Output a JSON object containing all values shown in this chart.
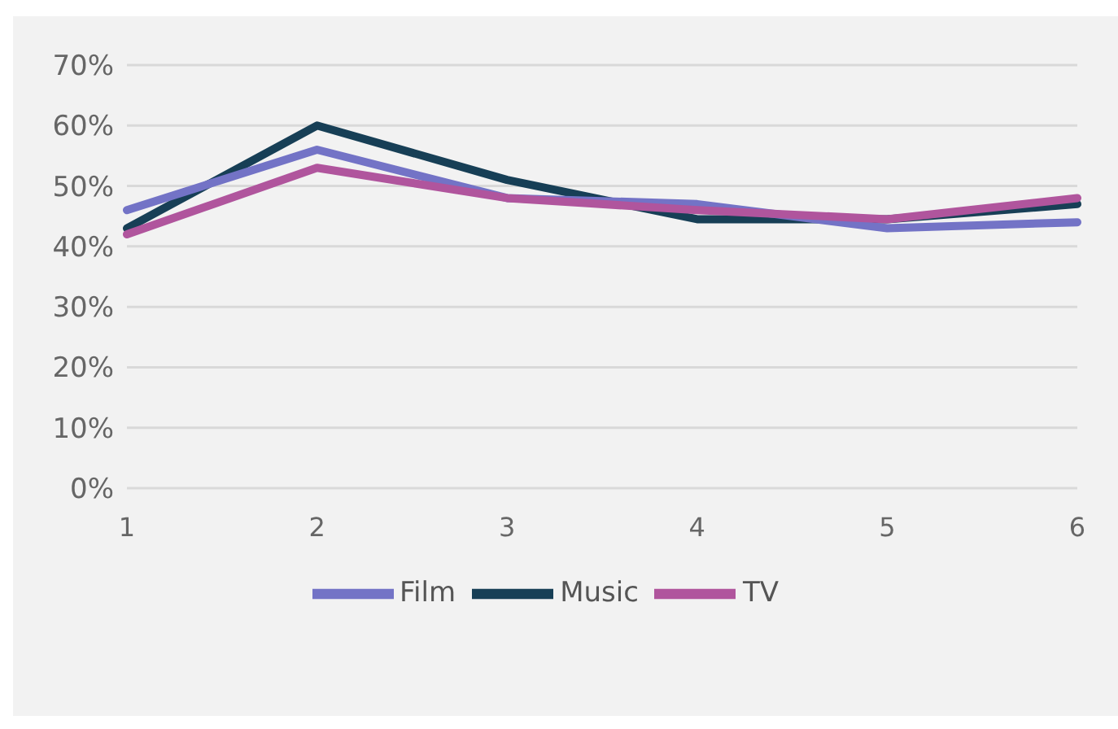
{
  "chart_data": {
    "type": "line",
    "categories": [
      "1",
      "2",
      "3",
      "4",
      "5",
      "6"
    ],
    "series": [
      {
        "name": "Music",
        "color": "#173f56",
        "values": [
          43,
          60,
          51,
          44.5,
          44.5,
          47
        ]
      },
      {
        "name": "Film",
        "color": "#7373c6",
        "values": [
          46,
          56,
          48,
          47,
          43,
          44
        ]
      },
      {
        "name": "TV",
        "color": "#b0559d",
        "values": [
          42,
          53,
          48,
          46,
          44.5,
          48
        ]
      }
    ],
    "ylim": [
      0,
      70
    ],
    "yticks": [
      {
        "value": 0,
        "label": "0%"
      },
      {
        "value": 10,
        "label": "10%"
      },
      {
        "value": 20,
        "label": "20%"
      },
      {
        "value": 30,
        "label": "30%"
      },
      {
        "value": 40,
        "label": "40%"
      },
      {
        "value": 50,
        "label": "50%"
      },
      {
        "value": 60,
        "label": "60%"
      },
      {
        "value": 70,
        "label": "70%"
      }
    ],
    "grid": "y",
    "legend": "bottom",
    "marker": "none",
    "line_style": "solid"
  }
}
